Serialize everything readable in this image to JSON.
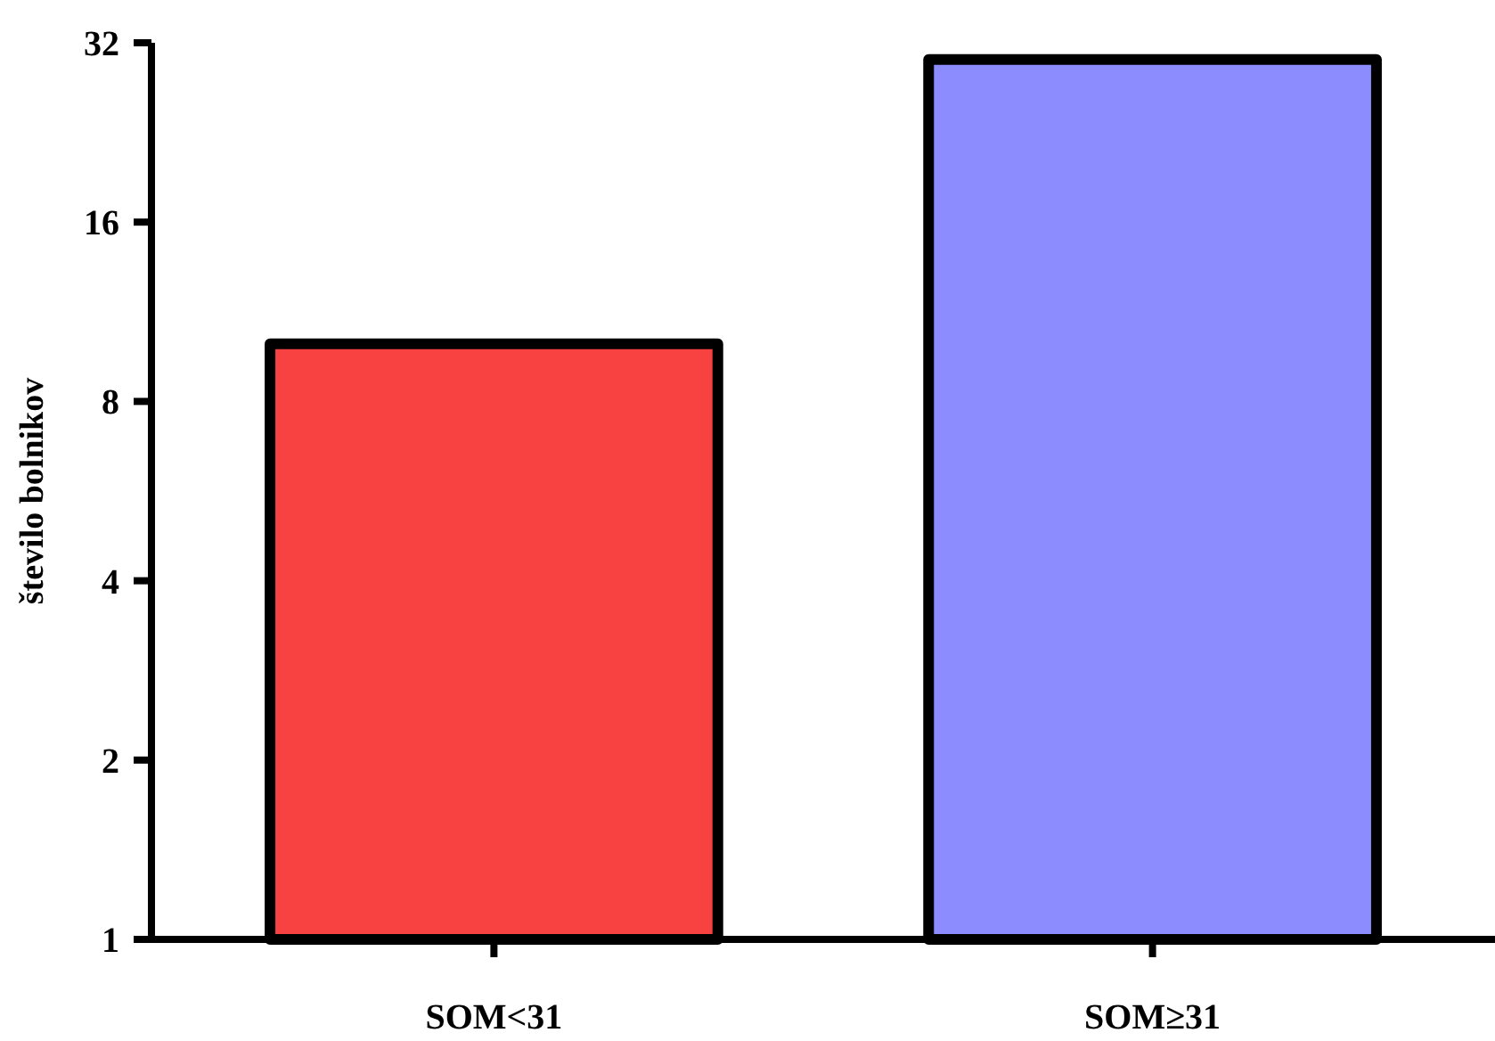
{
  "chart_data": {
    "type": "bar",
    "ylabel": "število bolnikov",
    "categories": [
      "SOM<31",
      "SOM≥31"
    ],
    "values": [
      10,
      30
    ],
    "colors": [
      "#f84242",
      "#8c8cff"
    ],
    "log": "y",
    "ylim": [
      1,
      32
    ],
    "yticks": [
      1,
      2,
      4,
      8,
      16,
      32
    ],
    "grid": false
  }
}
